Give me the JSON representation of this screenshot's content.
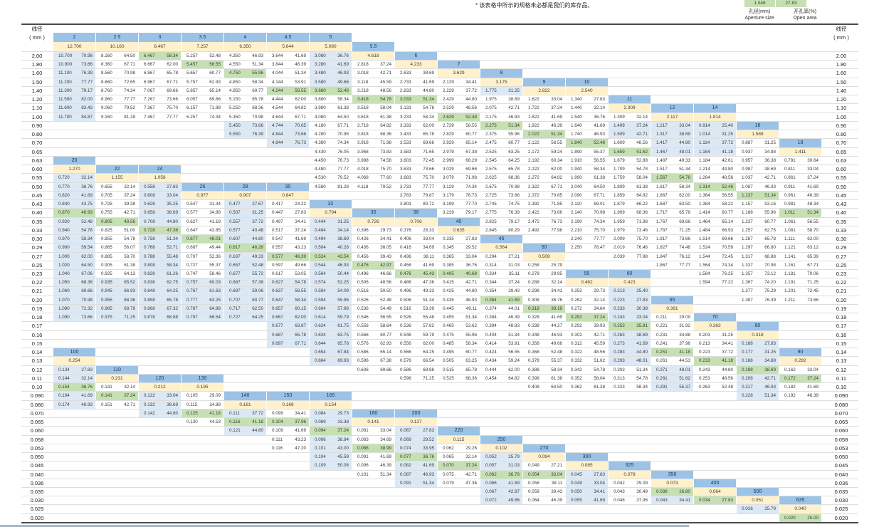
{
  "note": "* 该表格中所示的规格未必都是我们的库存品。",
  "legend": {
    "aperture_sample": "1.048",
    "open_sample": "27.83",
    "aperture_label_cn": "孔径(mm)",
    "aperture_label_en": "Aperture size",
    "open_label_cn": "开孔率(%)",
    "open_label_en": "Open area"
  },
  "axis": {
    "left_title": "线径",
    "left_unit": "( mm )",
    "right_title": "线径",
    "right_unit": "( mm )"
  },
  "colors": {
    "header_blue": "#9cc2e5",
    "pitch_yellow": "#fff1cc",
    "data_blue": "#dce9f5",
    "data_green": "#c5e0b2",
    "row_line": "#dedede",
    "frame_line": "#4a4a4a"
  },
  "value_rule": {
    "aperture_mm": "25.4/mesh - wire_d, 3 decimals",
    "open_area_pct": "100*(1 - wire_d*mesh/25.4)^2, 2 decimals"
  },
  "rows": [
    "2.00",
    "1.80",
    "1.60",
    "1.50",
    "1.40",
    "1.20",
    "1.10",
    "1.00",
    "0.90",
    "0.80",
    "0.70",
    "0.65",
    "0.63",
    "0.60",
    "0.55",
    "0.50",
    "0.45",
    "0.43",
    "0.40",
    "0.35",
    "0.33",
    "0.30",
    "0.29",
    "0.27",
    "0.25",
    "0.23",
    "0.22",
    "0.21",
    "0.20",
    "0.19",
    "0.18",
    "0.17",
    "0.16",
    "0.15",
    "0.14",
    "0.13",
    "0.12",
    "0.11",
    "0.10",
    "0.090",
    "0.080",
    "0.070",
    "0.065",
    "0.060",
    "0.058",
    "0.053",
    "0.050",
    "0.045",
    "0.040",
    "0.036",
    "0.035",
    "0.030",
    "0.025",
    "0.020"
  ],
  "meshes": [
    {
      "m": "2",
      "col": 0,
      "hdr": -2,
      "end": 7,
      "pitch": "12.700"
    },
    {
      "m": "2.5",
      "col": 1,
      "hdr": -2,
      "end": 7,
      "pitch": "10.160"
    },
    {
      "m": "3",
      "col": 2,
      "hdr": -2,
      "end": 7,
      "pitch": "8.467"
    },
    {
      "m": "3.5",
      "col": 3,
      "hdr": -2,
      "end": 7,
      "pitch": "7.257"
    },
    {
      "m": "4",
      "col": 4,
      "hdr": -2,
      "end": 9,
      "pitch": "6.350"
    },
    {
      "m": "4.5",
      "col": 5,
      "hdr": -2,
      "end": 10,
      "pitch": "5.644"
    },
    {
      "m": "5",
      "col": 6,
      "hdr": -2,
      "end": 15,
      "pitch": "5.080"
    },
    {
      "m": "5.5",
      "col": 7,
      "hdr": -1,
      "end": 15,
      "pitch": "4.618"
    },
    {
      "m": "6",
      "col": 8,
      "hdr": 0,
      "end": 17,
      "pitch": "4.233"
    },
    {
      "m": "7",
      "col": 9,
      "hdr": 1,
      "end": 18,
      "pitch": "3.629"
    },
    {
      "m": "8",
      "col": 10,
      "hdr": 2,
      "end": 20,
      "pitch": "3.175"
    },
    {
      "m": "9",
      "col": 11,
      "hdr": 3,
      "end": 20,
      "pitch": "2.822"
    },
    {
      "m": "10",
      "col": 12,
      "hdr": 3,
      "end": 22,
      "pitch": "2.540"
    },
    {
      "m": "11",
      "col": 13,
      "hdr": 5,
      "end": 23,
      "pitch": "2.309"
    },
    {
      "m": "12",
      "col": 14,
      "hdr": 6,
      "end": 24,
      "pitch": "2.117"
    },
    {
      "m": "14",
      "col": 15,
      "hdr": 6,
      "end": 26,
      "pitch": "1.814"
    },
    {
      "m": "16",
      "col": 16,
      "hdr": 8,
      "end": 28,
      "pitch": "1.588"
    },
    {
      "m": "18",
      "col": 17,
      "hdr": 10,
      "end": 28,
      "pitch": "1.411"
    },
    {
      "m": "20",
      "col": 0,
      "hdr": 12,
      "end": 30,
      "pitch": "1.270"
    },
    {
      "m": "22",
      "col": 1,
      "hdr": 13,
      "end": 30,
      "pitch": "1.155"
    },
    {
      "m": "24",
      "col": 2,
      "hdr": 13,
      "end": 30,
      "pitch": "1.058"
    },
    {
      "m": "26",
      "col": 3,
      "hdr": 15,
      "end": 30,
      "pitch": "0.977"
    },
    {
      "m": "28",
      "col": 4,
      "hdr": 15,
      "end": 30,
      "pitch": "0.907"
    },
    {
      "m": "30",
      "col": 5,
      "hdr": 15,
      "end": 33,
      "pitch": "0.847"
    },
    {
      "m": "32",
      "col": 6,
      "hdr": 17,
      "end": 35,
      "pitch": "0.794"
    },
    {
      "m": "35",
      "col": 7,
      "hdr": 18,
      "end": 36,
      "pitch": "0.726"
    },
    {
      "m": "36",
      "col": 8,
      "hdr": 18,
      "end": 37,
      "pitch": "0.706"
    },
    {
      "m": "40",
      "col": 9,
      "hdr": 19,
      "end": 37,
      "pitch": "0.635"
    },
    {
      "m": "45",
      "col": 10,
      "hdr": 21,
      "end": 37,
      "pitch": "0.564"
    },
    {
      "m": "50",
      "col": 11,
      "hdr": 22,
      "end": 38,
      "pitch": "0.508"
    },
    {
      "m": "55",
      "col": 12,
      "hdr": 25,
      "end": 38,
      "pitch": "0.462"
    },
    {
      "m": "60",
      "col": 13,
      "hdr": 25,
      "end": 38,
      "pitch": "0.423"
    },
    {
      "m": "65",
      "col": 14,
      "hdr": 28,
      "end": 38,
      "pitch": "0.391"
    },
    {
      "m": "70",
      "col": 15,
      "hdr": 30,
      "end": 38,
      "pitch": "0.363"
    },
    {
      "m": "80",
      "col": 16,
      "hdr": 31,
      "end": 39,
      "pitch": "0.318"
    },
    {
      "m": "90",
      "col": 17,
      "hdr": 34,
      "end": 39,
      "pitch": "0.282"
    },
    {
      "m": "100",
      "col": 0,
      "hdr": 34,
      "end": 40,
      "pitch": "0.254"
    },
    {
      "m": "110",
      "col": 1,
      "hdr": 36,
      "end": 40,
      "pitch": "0.231"
    },
    {
      "m": "120",
      "col": 2,
      "hdr": 37,
      "end": 41,
      "pitch": "0.212"
    },
    {
      "m": "130",
      "col": 3,
      "hdr": 37,
      "end": 42,
      "pitch": "0.195"
    },
    {
      "m": "140",
      "col": 4,
      "hdr": 39,
      "end": 43,
      "pitch": "0.181"
    },
    {
      "m": "150",
      "col": 5,
      "hdr": 39,
      "end": 45,
      "pitch": "0.169"
    },
    {
      "m": "165",
      "col": 6,
      "hdr": 39,
      "end": 47,
      "pitch": "0.154"
    },
    {
      "m": "180",
      "col": 7,
      "hdr": 41,
      "end": 48,
      "pitch": "0.141"
    },
    {
      "m": "200",
      "col": 8,
      "hdr": 41,
      "end": 49,
      "pitch": "0.127"
    },
    {
      "m": "220",
      "col": 9,
      "hdr": 43,
      "end": 49,
      "pitch": "0.115"
    },
    {
      "m": "250",
      "col": 10,
      "hdr": 44,
      "end": 51,
      "pitch": "0.102"
    },
    {
      "m": "270",
      "col": 11,
      "hdr": 45,
      "end": 51,
      "pitch": "0.094"
    },
    {
      "m": "300",
      "col": 12,
      "hdr": 46,
      "end": 51,
      "pitch": "0.085"
    },
    {
      "m": "325",
      "col": 13,
      "hdr": 47,
      "end": 51,
      "pitch": "0.078"
    },
    {
      "m": "350",
      "col": 14,
      "hdr": 48,
      "end": 51,
      "pitch": "0.073"
    },
    {
      "m": "400",
      "col": 15,
      "hdr": 49,
      "end": 51,
      "pitch": "0.064"
    },
    {
      "m": "500",
      "col": 16,
      "hdr": 50,
      "end": 52,
      "pitch": "0.051"
    },
    {
      "m": "635",
      "col": 17,
      "hdr": 51,
      "end": 53,
      "pitch": "0.040"
    }
  ],
  "greens": [
    [
      0,
      "3"
    ],
    [
      1,
      "3.5"
    ],
    [
      2,
      "4"
    ],
    [
      4,
      "4.5"
    ],
    [
      4,
      "5"
    ],
    [
      5,
      "5.5"
    ],
    [
      5,
      "6"
    ],
    [
      7,
      "7"
    ],
    [
      8,
      "8"
    ],
    [
      9,
      "9"
    ],
    [
      10,
      "10"
    ],
    [
      11,
      "11"
    ],
    [
      14,
      "12"
    ],
    [
      15,
      "14"
    ],
    [
      16,
      "16"
    ],
    [
      18,
      "18"
    ],
    [
      18,
      "20"
    ],
    [
      19,
      "22"
    ],
    [
      20,
      "24"
    ],
    [
      21,
      "26"
    ],
    [
      22,
      "28"
    ],
    [
      23,
      "30"
    ],
    [
      23,
      "32"
    ],
    [
      24,
      "35"
    ],
    [
      25,
      "36"
    ],
    [
      25,
      "40"
    ],
    [
      28,
      "45"
    ],
    [
      29,
      "50"
    ],
    [
      30,
      "55"
    ],
    [
      31,
      "60"
    ],
    [
      34,
      "65"
    ],
    [
      35,
      "70"
    ],
    [
      36,
      "80"
    ],
    [
      37,
      "90"
    ],
    [
      38,
      "100"
    ],
    [
      39,
      "110"
    ],
    [
      41,
      "130"
    ],
    [
      42,
      "140"
    ],
    [
      42,
      "150"
    ],
    [
      43,
      "165"
    ],
    [
      45,
      "180"
    ],
    [
      46,
      "200"
    ],
    [
      47,
      "220"
    ],
    [
      48,
      "250"
    ],
    [
      48,
      "270"
    ],
    [
      50,
      "350"
    ],
    [
      51,
      "400"
    ],
    [
      53,
      "635"
    ]
  ],
  "blues": {
    "2": [
      [
        0,
        7
      ]
    ],
    "4": [
      [
        8,
        9
      ]
    ],
    "4.5": [
      [
        8,
        10
      ]
    ],
    "5": [
      [
        0,
        3
      ]
    ],
    "8": [
      [
        4,
        4
      ]
    ],
    "11": [
      [
        8,
        9
      ]
    ],
    "12": [
      [
        8,
        11
      ]
    ],
    "14": [
      [
        8,
        11
      ]
    ],
    "20": [
      [
        14,
        30
      ]
    ],
    "22": [
      [
        26,
        30
      ]
    ],
    "24": [
      [
        15,
        30
      ]
    ],
    "26": [
      [
        26,
        30
      ]
    ],
    "28": [
      [
        17,
        30
      ]
    ],
    "30": [
      [
        26,
        33
      ]
    ],
    "32": [
      [
        19,
        35
      ]
    ],
    "60": [
      [
        27,
        35
      ]
    ],
    "65": [
      [
        36,
        38
      ]
    ],
    "80": [
      [
        33,
        39
      ]
    ],
    "100": [
      [
        36,
        40
      ]
    ],
    "120": [
      [
        39,
        41
      ]
    ],
    "140": [
      [
        41,
        43
      ]
    ],
    "165": [
      [
        41,
        47
      ]
    ],
    "200": [
      [
        43,
        49
      ]
    ],
    "250": [
      [
        46,
        51
      ]
    ],
    "300": [
      [
        48,
        51
      ]
    ],
    "350": [
      [
        50,
        51
      ]
    ],
    "500": [
      [
        52,
        52
      ]
    ]
  }
}
